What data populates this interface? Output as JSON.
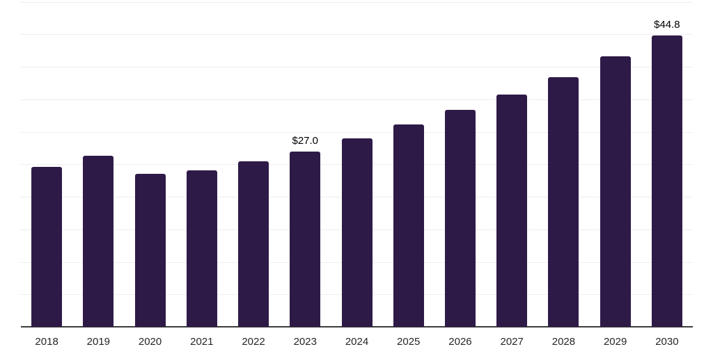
{
  "chart_data": {
    "type": "bar",
    "title": "",
    "xlabel": "",
    "ylabel": "",
    "categories": [
      "2018",
      "2019",
      "2020",
      "2021",
      "2022",
      "2023",
      "2024",
      "2025",
      "2026",
      "2027",
      "2028",
      "2029",
      "2030"
    ],
    "values": [
      24.6,
      26.3,
      23.5,
      24.1,
      25.5,
      27.0,
      29.0,
      31.1,
      33.4,
      35.7,
      38.4,
      41.6,
      44.8
    ],
    "value_unit_prefix": "$",
    "annotations": [
      {
        "category": "2023",
        "text": "$27.0"
      },
      {
        "category": "2030",
        "text": "$44.8"
      }
    ],
    "ylim": [
      0,
      50
    ],
    "grid_interval": 5,
    "grid": true,
    "legend_position": "none",
    "colors": {
      "bar": "#2e1a47",
      "gridline": "#ededed",
      "axis": "#3c3c3c",
      "value_label": "#000000",
      "tick_label": "#262626",
      "background": "#ffffff"
    }
  }
}
